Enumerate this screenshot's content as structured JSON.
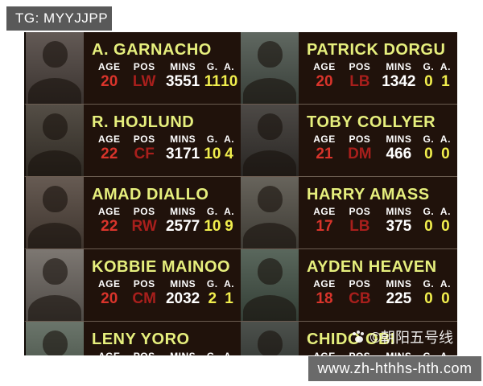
{
  "tg_badge": {
    "label": "TG: MYYJJPP"
  },
  "site_banner": {
    "url_text": "www.zh-hthhs-hth.com"
  },
  "card_watermark": {
    "icon": "paw-icon",
    "text": "©朝阳五号线"
  },
  "stats_headers": [
    "AGE",
    "POS",
    "MINS",
    "G.",
    "A."
  ],
  "colors": {
    "panel_bg": "#20120b",
    "name_text": "#e6ef7d",
    "header_text": "#ffffff",
    "age_value": "#d9342b",
    "pos_value": "#a81f1c",
    "mins_value": "#ffffff",
    "goals_assists_value": "#f1ee4d",
    "badge_bg": "#595959",
    "banner_bg": "#6a6a6a"
  },
  "players": [
    {
      "name": "A. GARNACHO",
      "age": "20",
      "pos": "LW",
      "mins": "3551",
      "g": "11",
      "a": "10",
      "photo_bg": "#514742"
    },
    {
      "name": "PATRICK DORGU",
      "age": "20",
      "pos": "LB",
      "mins": "1342",
      "g": "0",
      "a": "1",
      "photo_bg": "#4e574f"
    },
    {
      "name": "R. HOJLUND",
      "age": "22",
      "pos": "CF",
      "mins": "3171",
      "g": "10",
      "a": "4",
      "photo_bg": "#413a31"
    },
    {
      "name": "TOBY COLLYER",
      "age": "21",
      "pos": "DM",
      "mins": "466",
      "g": "0",
      "a": "0",
      "photo_bg": "#393531"
    },
    {
      "name": "AMAD DIALLO",
      "age": "22",
      "pos": "RW",
      "mins": "2577",
      "g": "10",
      "a": "9",
      "photo_bg": "#55483f"
    },
    {
      "name": "HARRY AMASS",
      "age": "17",
      "pos": "LB",
      "mins": "375",
      "g": "0",
      "a": "0",
      "photo_bg": "#565249"
    },
    {
      "name": "KOBBIE MAINOO",
      "age": "20",
      "pos": "CM",
      "mins": "2032",
      "g": "2",
      "a": "1",
      "photo_bg": "#6e6862"
    },
    {
      "name": "AYDEN HEAVEN",
      "age": "18",
      "pos": "CB",
      "mins": "225",
      "g": "0",
      "a": "0",
      "photo_bg": "#47564a"
    },
    {
      "name": "LENY YORO",
      "age": "",
      "pos": "",
      "mins": "",
      "g": "",
      "a": "",
      "photo_bg": "#5a665a"
    },
    {
      "name": "CHIDO OBI",
      "age": "",
      "pos": "",
      "mins": "",
      "g": "",
      "a": "",
      "photo_bg": "#383d38"
    }
  ]
}
